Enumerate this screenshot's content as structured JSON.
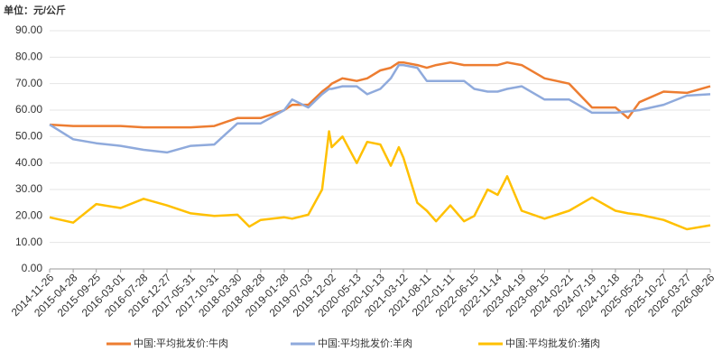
{
  "chart_data": {
    "type": "line",
    "title": "单位：元/公斤",
    "x": [
      "2014-11-26",
      "2015-04-28",
      "2015-09-25",
      "2016-03-01",
      "2016-07-28",
      "2016-12-27",
      "2017-05-31",
      "2017-10-31",
      "2018-03-30",
      "2018-06-15",
      "2018-08-28",
      "2019-01-28",
      "2019-03-20",
      "2019-07-03",
      "2019-10-01",
      "2019-11-15",
      "2019-12-02",
      "2020-02-10",
      "2020-05-13",
      "2020-07-20",
      "2020-10-13",
      "2020-12-20",
      "2021-02-10",
      "2021-03-12",
      "2021-06-10",
      "2021-08-11",
      "2021-10-10",
      "2022-01-11",
      "2022-04-10",
      "2022-06-15",
      "2022-09-10",
      "2022-11-14",
      "2023-01-15",
      "2023-04-19",
      "2023-09-15",
      "2024-02-21",
      "2024-07-19",
      "2024-12-18",
      "2025-03-10",
      "2025-05-23",
      "2025-10-27",
      "2026-03-27",
      "2026-08-26"
    ],
    "series": [
      {
        "name": "中国:平均批发价:牛肉",
        "color": "#ed7d31",
        "values": [
          54.5,
          54,
          54,
          54,
          53.5,
          53.5,
          53.5,
          54,
          57,
          57,
          57,
          60,
          62,
          62,
          67,
          69,
          70,
          72,
          71,
          72,
          75,
          76,
          78,
          78,
          77,
          76,
          77,
          78,
          77,
          77,
          77,
          77,
          78,
          77,
          72,
          70,
          61,
          61,
          57,
          63,
          67,
          66.5,
          69
        ]
      },
      {
        "name": "中国:平均批发价:羊肉",
        "color": "#8faadc",
        "values": [
          54.5,
          49,
          47.5,
          46.5,
          45,
          44,
          46.5,
          47,
          55,
          55,
          55,
          60,
          64,
          61,
          66,
          68,
          68,
          69,
          69,
          66,
          68,
          72,
          77,
          77,
          76,
          71,
          71,
          71,
          71,
          68,
          67,
          67,
          68,
          69,
          64,
          64,
          59,
          59,
          59.5,
          60,
          62,
          65.5,
          66
        ]
      },
      {
        "name": "中国:平均批发价:猪肉",
        "color": "#ffc000",
        "values": [
          19.5,
          17.5,
          24.5,
          23,
          26.5,
          24,
          21,
          20,
          20.5,
          16,
          18.5,
          19.5,
          19,
          20.5,
          30,
          52,
          46,
          50,
          40,
          48,
          47,
          39,
          46,
          42,
          25,
          22,
          18,
          24,
          18,
          20,
          30,
          28,
          35,
          22,
          19,
          22,
          27,
          22,
          21,
          20.5,
          18.5,
          15,
          16.5
        ]
      }
    ],
    "xlim": [
      "2014-11-26",
      "2026-08-26"
    ],
    "xticks": [
      "2014-11-26",
      "2015-04-28",
      "2015-09-25",
      "2016-03-01",
      "2016-07-28",
      "2016-12-27",
      "2017-05-31",
      "2017-10-31",
      "2018-03-30",
      "2018-08-28",
      "2019-01-28",
      "2019-07-03",
      "2019-12-02",
      "2020-05-13",
      "2020-10-13",
      "2021-03-12",
      "2021-08-11",
      "2022-01-11",
      "2022-06-15",
      "2022-11-14",
      "2023-04-19",
      "2023-09-15",
      "2024-02-21",
      "2024-07-19",
      "2024-12-18",
      "2025-05-23",
      "2025-10-27",
      "2026-03-27",
      "2026-08-26"
    ],
    "ylim": [
      0,
      90
    ],
    "yticks": [
      {
        "value": 0,
        "label": "0.00"
      },
      {
        "value": 10,
        "label": "10.00"
      },
      {
        "value": 20,
        "label": "20.00"
      },
      {
        "value": 30,
        "label": "30.00"
      },
      {
        "value": 40,
        "label": "40.00"
      },
      {
        "value": 50,
        "label": "50.00"
      },
      {
        "value": 60,
        "label": "60.00"
      },
      {
        "value": 70,
        "label": "70.00"
      },
      {
        "value": 80,
        "label": "80.00"
      },
      {
        "value": 90,
        "label": "90.00"
      }
    ],
    "grid": true,
    "legend": "bottom"
  }
}
